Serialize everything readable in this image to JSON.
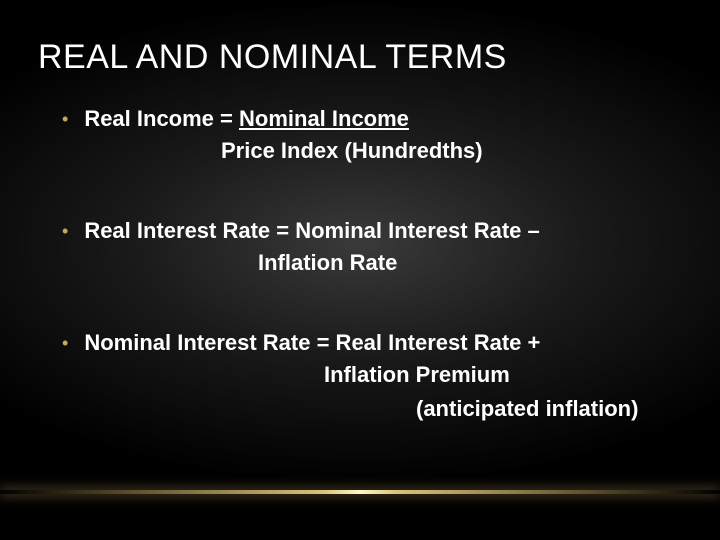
{
  "colors": {
    "bullet": "#c9a85a",
    "text": "#ffffff",
    "rule_highlight": "#fff5c8",
    "rule_mid": "#e6cd82",
    "rule_edge": "#bea05a",
    "bg_center": "#3a3a3a",
    "bg_outer": "#000000"
  },
  "typography": {
    "title_fontsize": 34,
    "body_fontsize": 22,
    "body_weight": 700,
    "font_family": "Arial"
  },
  "title": "REAL AND NOMINAL TERMS",
  "bullets": [
    {
      "line1_prefix": "Real Income =  ",
      "line1_underlined": "Nominal Income",
      "line2": "Price Index (Hundredths)",
      "line2_indent_class": "indent-a"
    },
    {
      "line1": "Real Interest Rate = Nominal Interest Rate – ",
      "line2": "Inflation Rate",
      "line2_indent_class": "indent-b"
    },
    {
      "line1": "Nominal Interest Rate = Real Interest Rate + ",
      "line2": "Inflation Premium",
      "line3": "(anticipated inflation)",
      "line2_indent_class": "indent-c",
      "line3_indent_class": "indent-d"
    }
  ]
}
